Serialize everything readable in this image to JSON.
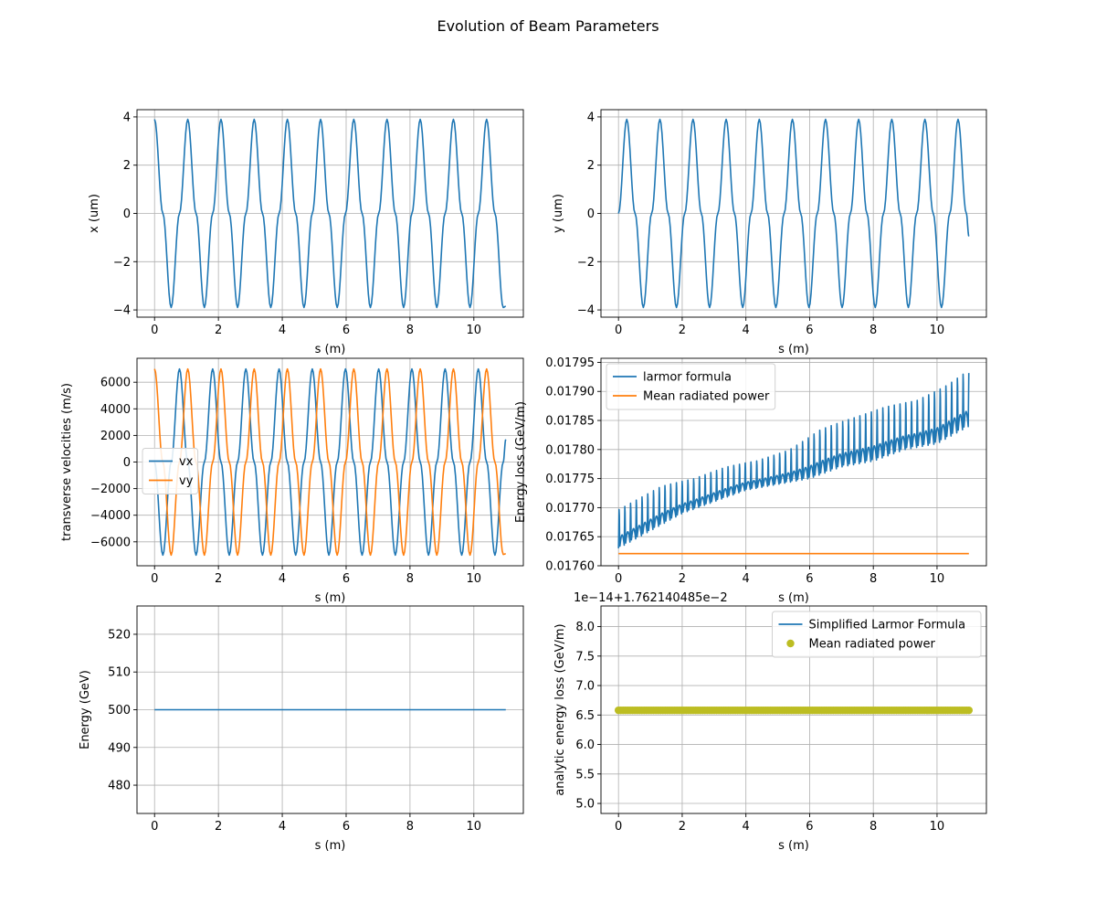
{
  "figure": {
    "title": "Evolution of Beam Parameters"
  },
  "colors": {
    "blue": "#1f77b4",
    "orange": "#ff7f0e",
    "olive": "#bcbd22",
    "grid": "#b0b0b0"
  },
  "chart_data": [
    {
      "id": "x",
      "type": "line",
      "xlabel": "s (m)",
      "ylabel": "x (um)",
      "xlim": [
        -0.55,
        11.55
      ],
      "ylim": [
        -4.3,
        4.3
      ],
      "xticks": [
        0,
        2,
        4,
        6,
        8,
        10
      ],
      "xtick_labels": [
        "0",
        "2",
        "4",
        "6",
        "8",
        "10"
      ],
      "yticks": [
        -4,
        -2,
        0,
        2,
        4
      ],
      "ytick_labels": [
        "−4",
        "−2",
        "0",
        "2",
        "4"
      ],
      "grid": true,
      "legend": "none",
      "series": [
        {
          "color": "#1f77b4",
          "x": [
            0,
            0.26,
            0.52,
            0.78,
            1.04,
            1.3,
            1.56,
            1.82,
            2.08,
            2.34,
            2.6,
            2.86,
            3.12,
            3.38,
            3.64,
            3.9,
            4.16,
            4.42,
            4.68,
            4.94,
            5.2,
            5.46,
            5.72,
            5.98,
            6.24,
            6.5,
            6.76,
            7.02,
            7.28,
            7.54,
            7.8,
            8.06,
            8.32,
            8.58,
            8.84,
            9.1,
            9.36,
            9.62,
            9.88,
            10.14,
            10.4,
            10.66,
            10.92,
            11.0
          ],
          "y": [
            3.9,
            0,
            -3.9,
            0,
            3.9,
            0,
            -3.9,
            0,
            3.9,
            0,
            -3.9,
            0,
            3.9,
            0,
            -3.9,
            0,
            3.9,
            0,
            -3.9,
            0,
            3.9,
            0,
            -3.9,
            0,
            3.9,
            0,
            -3.9,
            0,
            3.9,
            0,
            -3.9,
            0,
            3.9,
            0,
            -3.9,
            0,
            3.9,
            0,
            -3.9,
            0,
            3.9,
            0,
            -3.9,
            -3.85
          ]
        }
      ]
    },
    {
      "id": "y",
      "type": "line",
      "xlabel": "s (m)",
      "ylabel": "y (um)",
      "xlim": [
        -0.55,
        11.55
      ],
      "ylim": [
        -4.3,
        4.3
      ],
      "xticks": [
        0,
        2,
        4,
        6,
        8,
        10
      ],
      "xtick_labels": [
        "0",
        "2",
        "4",
        "6",
        "8",
        "10"
      ],
      "yticks": [
        -4,
        -2,
        0,
        2,
        4
      ],
      "ytick_labels": [
        "−4",
        "−2",
        "0",
        "2",
        "4"
      ],
      "grid": true,
      "legend": "none",
      "series": [
        {
          "color": "#1f77b4",
          "x": [
            0,
            0.26,
            0.52,
            0.78,
            1.04,
            1.3,
            1.56,
            1.82,
            2.08,
            2.34,
            2.6,
            2.86,
            3.12,
            3.38,
            3.64,
            3.9,
            4.16,
            4.42,
            4.68,
            4.94,
            5.2,
            5.46,
            5.72,
            5.98,
            6.24,
            6.5,
            6.76,
            7.02,
            7.28,
            7.54,
            7.8,
            8.06,
            8.32,
            8.58,
            8.84,
            9.1,
            9.36,
            9.62,
            9.88,
            10.14,
            10.4,
            10.66,
            10.92,
            11.0
          ],
          "y": [
            0,
            3.9,
            0,
            -3.9,
            0,
            3.9,
            0,
            -3.9,
            0,
            3.9,
            0,
            -3.9,
            0,
            3.9,
            0,
            -3.9,
            0,
            3.9,
            0,
            -3.9,
            0,
            3.9,
            0,
            -3.9,
            0,
            3.9,
            0,
            -3.9,
            0,
            3.9,
            0,
            -3.9,
            0,
            3.9,
            0,
            -3.9,
            0,
            3.9,
            0,
            -3.9,
            0,
            3.9,
            0,
            -0.95
          ]
        }
      ]
    },
    {
      "id": "v",
      "type": "line",
      "xlabel": "s (m)",
      "ylabel": "transverse velocities (m/s)",
      "xlim": [
        -0.55,
        11.55
      ],
      "ylim": [
        -7800,
        7800
      ],
      "xticks": [
        0,
        2,
        4,
        6,
        8,
        10
      ],
      "xtick_labels": [
        "0",
        "2",
        "4",
        "6",
        "8",
        "10"
      ],
      "yticks": [
        -6000,
        -4000,
        -2000,
        0,
        2000,
        4000,
        6000
      ],
      "ytick_labels": [
        "−6000",
        "−4000",
        "−2000",
        "0",
        "2000",
        "4000",
        "6000"
      ],
      "grid": true,
      "legend": "center-left",
      "series": [
        {
          "name": "vx",
          "color": "#1f77b4",
          "x": [
            0,
            0.26,
            0.52,
            0.78,
            1.04,
            1.3,
            1.56,
            1.82,
            2.08,
            2.34,
            2.6,
            2.86,
            3.12,
            3.38,
            3.64,
            3.9,
            4.16,
            4.42,
            4.68,
            4.94,
            5.2,
            5.46,
            5.72,
            5.98,
            6.24,
            6.5,
            6.76,
            7.02,
            7.28,
            7.54,
            7.8,
            8.06,
            8.32,
            8.58,
            8.84,
            9.1,
            9.36,
            9.62,
            9.88,
            10.14,
            10.4,
            10.66,
            10.92,
            11.0
          ],
          "y": [
            0,
            -7000,
            0,
            7000,
            0,
            -7000,
            0,
            7000,
            0,
            -7000,
            0,
            7000,
            0,
            -7000,
            0,
            7000,
            0,
            -7000,
            0,
            7000,
            0,
            -7000,
            0,
            7000,
            0,
            -7000,
            0,
            7000,
            0,
            -7000,
            0,
            7000,
            0,
            -7000,
            0,
            7000,
            0,
            -7000,
            0,
            7000,
            0,
            -7000,
            0,
            1700
          ]
        },
        {
          "name": "vy",
          "color": "#ff7f0e",
          "x": [
            0,
            0.26,
            0.52,
            0.78,
            1.04,
            1.3,
            1.56,
            1.82,
            2.08,
            2.34,
            2.6,
            2.86,
            3.12,
            3.38,
            3.64,
            3.9,
            4.16,
            4.42,
            4.68,
            4.94,
            5.2,
            5.46,
            5.72,
            5.98,
            6.24,
            6.5,
            6.76,
            7.02,
            7.28,
            7.54,
            7.8,
            8.06,
            8.32,
            8.58,
            8.84,
            9.1,
            9.36,
            9.62,
            9.88,
            10.14,
            10.4,
            10.66,
            10.92,
            11.0
          ],
          "y": [
            7000,
            0,
            -7000,
            0,
            7000,
            0,
            -7000,
            0,
            7000,
            0,
            -7000,
            0,
            7000,
            0,
            -7000,
            0,
            7000,
            0,
            -7000,
            0,
            7000,
            0,
            -7000,
            0,
            7000,
            0,
            -7000,
            0,
            7000,
            0,
            -7000,
            0,
            7000,
            0,
            -7000,
            0,
            7000,
            0,
            -7000,
            0,
            7000,
            0,
            -6950,
            -6900
          ]
        }
      ]
    },
    {
      "id": "eloss",
      "type": "line",
      "xlabel": "s (m)",
      "ylabel": "Energy loss (GeV/m)",
      "xlim": [
        -0.55,
        11.55
      ],
      "ylim": [
        0.0176,
        0.017957
      ],
      "xticks": [
        0,
        2,
        4,
        6,
        8,
        10
      ],
      "xtick_labels": [
        "0",
        "2",
        "4",
        "6",
        "8",
        "10"
      ],
      "yticks": [
        0.0176,
        0.01765,
        0.0177,
        0.01775,
        0.0178,
        0.01785,
        0.0179,
        0.01795
      ],
      "ytick_labels": [
        "0.01760",
        "0.01765",
        "0.01770",
        "0.01775",
        "0.01780",
        "0.01785",
        "0.01790",
        "0.01795"
      ],
      "grid": true,
      "legend": "upper-left",
      "series": [
        {
          "name": "larmor formula",
          "color": "#1f77b4",
          "x": [
            0,
            1,
            2,
            3,
            4,
            5,
            6,
            7,
            8,
            9,
            10,
            11
          ],
          "y": [
            0.01763,
            0.01766,
            0.01769,
            0.01771,
            0.01773,
            0.01774,
            0.01775,
            0.01777,
            0.01778,
            0.0178,
            0.01781,
            0.01784
          ],
          "peaks_x": [
            0.35,
            1.35,
            2.35,
            3.35,
            4.35,
            5.35,
            6.35,
            7.35,
            8.35,
            9.35,
            10.35,
            10.85
          ],
          "peaks_y": [
            0.01772,
            0.01775,
            0.01776,
            0.01778,
            0.01779,
            0.01781,
            0.01785,
            0.01787,
            0.01789,
            0.0179,
            0.01793,
            0.01795
          ]
        },
        {
          "name": "Mean radiated power",
          "color": "#ff7f0e",
          "x": [
            0,
            11
          ],
          "y": [
            0.017621,
            0.017621
          ]
        }
      ]
    },
    {
      "id": "energy",
      "type": "line",
      "xlabel": "s (m)",
      "ylabel": "Energy (GeV)",
      "xlim": [
        -0.55,
        11.55
      ],
      "ylim": [
        472.5,
        527.5
      ],
      "xticks": [
        0,
        2,
        4,
        6,
        8,
        10
      ],
      "xtick_labels": [
        "0",
        "2",
        "4",
        "6",
        "8",
        "10"
      ],
      "yticks": [
        480,
        490,
        500,
        510,
        520
      ],
      "ytick_labels": [
        "480",
        "490",
        "500",
        "510",
        "520"
      ],
      "grid": true,
      "legend": "none",
      "series": [
        {
          "color": "#1f77b4",
          "x": [
            0,
            11
          ],
          "y": [
            500,
            500
          ]
        }
      ]
    },
    {
      "id": "analytic",
      "type": "line",
      "xlabel": "s (m)",
      "ylabel": "analytic energy loss (GeV/m)",
      "offset_text": "1e−14+1.762140485e−2",
      "xlim": [
        -0.55,
        11.55
      ],
      "ylim": [
        4.83,
        8.35
      ],
      "xticks": [
        0,
        2,
        4,
        6,
        8,
        10
      ],
      "xtick_labels": [
        "0",
        "2",
        "4",
        "6",
        "8",
        "10"
      ],
      "yticks": [
        5.0,
        5.5,
        6.0,
        6.5,
        7.0,
        7.5,
        8.0
      ],
      "ytick_labels": [
        "5.0",
        "5.5",
        "6.0",
        "6.5",
        "7.0",
        "7.5",
        "8.0"
      ],
      "grid": true,
      "legend": "upper-right",
      "series": [
        {
          "name": "Simplified Larmor Formula",
          "color": "#1f77b4",
          "x": [
            0,
            2,
            3,
            5.3,
            5.3,
            11
          ],
          "y": [
            6.58,
            6.58,
            6.6,
            6.6,
            6.58,
            6.58
          ]
        },
        {
          "name": "Mean radiated power",
          "color": "#bcbd22",
          "marker": "circle",
          "x": [
            0,
            11
          ],
          "y": [
            6.58,
            6.58
          ]
        }
      ]
    }
  ]
}
